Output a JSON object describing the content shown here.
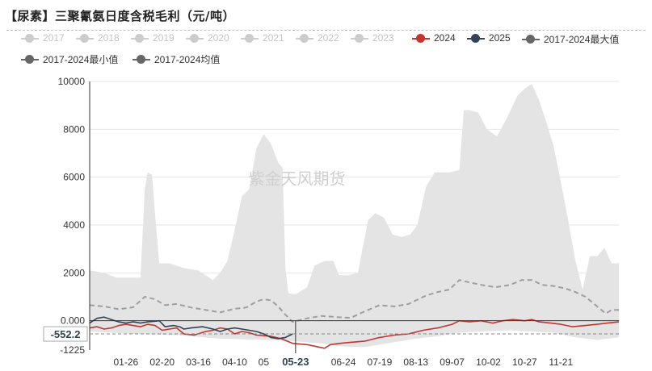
{
  "title": "【尿素】三聚氰氨日度含税毛利（元/吨）",
  "legend": [
    {
      "label": "2017",
      "color": "#cccccc",
      "muted": true
    },
    {
      "label": "2018",
      "color": "#cccccc",
      "muted": true
    },
    {
      "label": "2019",
      "color": "#cccccc",
      "muted": true
    },
    {
      "label": "2020",
      "color": "#cccccc",
      "muted": true
    },
    {
      "label": "2021",
      "color": "#cccccc",
      "muted": true
    },
    {
      "label": "2022",
      "color": "#cccccc",
      "muted": true
    },
    {
      "label": "2023",
      "color": "#cccccc",
      "muted": true
    },
    {
      "label": "2024",
      "color": "#c23531",
      "muted": false
    },
    {
      "label": "2025",
      "color": "#2f4554",
      "muted": false
    },
    {
      "label": "2017-2024最大值",
      "color": "#666666",
      "muted": false
    },
    {
      "label": "2017-2024最小值",
      "color": "#666666",
      "muted": false
    },
    {
      "label": "2017-2024均值",
      "color": "#666666",
      "muted": false
    }
  ],
  "watermark": "紫金天风期货",
  "chart_data": {
    "type": "area",
    "x_axis": {
      "tick_labels": [
        "01-26",
        "02-20",
        "03-16",
        "04-10",
        "05",
        "05-23",
        "06-24",
        "07-19",
        "08-13",
        "09-07",
        "10-02",
        "10-27",
        "11-21"
      ],
      "tick_days": [
        25,
        50,
        75,
        100,
        120,
        142,
        175,
        200,
        225,
        250,
        275,
        300,
        325
      ],
      "highlight_label": "05-23",
      "range_days": [
        0,
        365
      ]
    },
    "y_axis": {
      "ticks": [
        10000,
        8000,
        6000,
        4000,
        2000,
        0
      ],
      "tick_labels": [
        "10000",
        "8000",
        "6000",
        "4000",
        "2000",
        "0.000"
      ],
      "min_label": "-1225",
      "ylim": [
        -1225,
        10000
      ],
      "grid": true
    },
    "crosshair": {
      "value": -552.2,
      "label": "-552.2"
    },
    "series": [
      {
        "name": "2017-2024最大值",
        "role": "band_max",
        "color": "#e4e4e4",
        "points": [
          [
            0,
            2100
          ],
          [
            10,
            2000
          ],
          [
            18,
            1800
          ],
          [
            35,
            1800
          ],
          [
            36,
            3000
          ],
          [
            38,
            5500
          ],
          [
            40,
            6200
          ],
          [
            43,
            6100
          ],
          [
            45,
            4500
          ],
          [
            48,
            2400
          ],
          [
            55,
            2400
          ],
          [
            60,
            2300
          ],
          [
            65,
            2200
          ],
          [
            75,
            2100
          ],
          [
            85,
            1700
          ],
          [
            90,
            2000
          ],
          [
            95,
            2500
          ],
          [
            100,
            3800
          ],
          [
            105,
            5200
          ],
          [
            110,
            5500
          ],
          [
            115,
            7200
          ],
          [
            120,
            7800
          ],
          [
            125,
            7400
          ],
          [
            130,
            6600
          ],
          [
            133,
            6400
          ],
          [
            135,
            2200
          ],
          [
            137,
            1150
          ],
          [
            142,
            1100
          ],
          [
            150,
            1400
          ],
          [
            155,
            2300
          ],
          [
            162,
            2500
          ],
          [
            168,
            2500
          ],
          [
            172,
            1900
          ],
          [
            178,
            1900
          ],
          [
            185,
            2000
          ],
          [
            192,
            4200
          ],
          [
            197,
            4500
          ],
          [
            203,
            4300
          ],
          [
            209,
            3600
          ],
          [
            215,
            3500
          ],
          [
            221,
            3600
          ],
          [
            226,
            4000
          ],
          [
            232,
            5600
          ],
          [
            238,
            6200
          ],
          [
            248,
            6200
          ],
          [
            255,
            6300
          ],
          [
            258,
            8800
          ],
          [
            262,
            8800
          ],
          [
            268,
            8700
          ],
          [
            274,
            8000
          ],
          [
            281,
            7700
          ],
          [
            288,
            8500
          ],
          [
            295,
            9400
          ],
          [
            300,
            9700
          ],
          [
            305,
            9900
          ],
          [
            310,
            9200
          ],
          [
            315,
            8300
          ],
          [
            320,
            7300
          ],
          [
            325,
            5800
          ],
          [
            330,
            4200
          ],
          [
            335,
            2500
          ],
          [
            340,
            1300
          ],
          [
            345,
            2700
          ],
          [
            350,
            2700
          ],
          [
            355,
            3050
          ],
          [
            360,
            2400
          ],
          [
            365,
            2400
          ]
        ]
      },
      {
        "name": "2017-2024最小值",
        "role": "band_min",
        "color": "#e4e4e4",
        "points": [
          [
            0,
            -450
          ],
          [
            30,
            -550
          ],
          [
            60,
            -600
          ],
          [
            90,
            -750
          ],
          [
            120,
            -800
          ],
          [
            140,
            -850
          ],
          [
            150,
            -900
          ],
          [
            160,
            -950
          ],
          [
            170,
            -1050
          ],
          [
            180,
            -1100
          ],
          [
            190,
            -1100
          ],
          [
            200,
            -1000
          ],
          [
            210,
            -900
          ],
          [
            225,
            -750
          ],
          [
            240,
            -650
          ],
          [
            255,
            -500
          ],
          [
            270,
            -450
          ],
          [
            290,
            -400
          ],
          [
            305,
            -450
          ],
          [
            320,
            -500
          ],
          [
            335,
            -700
          ],
          [
            350,
            -800
          ],
          [
            365,
            -700
          ]
        ]
      },
      {
        "name": "2017-2024均值",
        "role": "mean",
        "color": "#9e9e9e",
        "dash": true,
        "points": [
          [
            0,
            650
          ],
          [
            10,
            600
          ],
          [
            20,
            480
          ],
          [
            30,
            560
          ],
          [
            38,
            1000
          ],
          [
            45,
            900
          ],
          [
            52,
            650
          ],
          [
            60,
            700
          ],
          [
            70,
            550
          ],
          [
            80,
            450
          ],
          [
            90,
            350
          ],
          [
            100,
            500
          ],
          [
            108,
            550
          ],
          [
            115,
            800
          ],
          [
            120,
            900
          ],
          [
            125,
            850
          ],
          [
            130,
            600
          ],
          [
            135,
            250
          ],
          [
            140,
            -50
          ],
          [
            150,
            100
          ],
          [
            160,
            200
          ],
          [
            170,
            150
          ],
          [
            180,
            120
          ],
          [
            190,
            400
          ],
          [
            200,
            650
          ],
          [
            210,
            600
          ],
          [
            220,
            700
          ],
          [
            225,
            850
          ],
          [
            232,
            1050
          ],
          [
            240,
            1200
          ],
          [
            248,
            1300
          ],
          [
            255,
            1700
          ],
          [
            262,
            1600
          ],
          [
            270,
            1500
          ],
          [
            280,
            1400
          ],
          [
            290,
            1500
          ],
          [
            298,
            1700
          ],
          [
            305,
            1700
          ],
          [
            312,
            1500
          ],
          [
            320,
            1450
          ],
          [
            328,
            1350
          ],
          [
            335,
            1200
          ],
          [
            342,
            1000
          ],
          [
            350,
            600
          ],
          [
            356,
            300
          ],
          [
            360,
            450
          ],
          [
            365,
            450
          ]
        ]
      },
      {
        "name": "2024",
        "role": "line",
        "color": "#c23531",
        "points": [
          [
            0,
            -300
          ],
          [
            5,
            -250
          ],
          [
            10,
            -350
          ],
          [
            15,
            -300
          ],
          [
            20,
            -200
          ],
          [
            25,
            -150
          ],
          [
            30,
            -200
          ],
          [
            35,
            -250
          ],
          [
            40,
            -150
          ],
          [
            45,
            -200
          ],
          [
            50,
            -400
          ],
          [
            55,
            -350
          ],
          [
            60,
            -300
          ],
          [
            65,
            -550
          ],
          [
            72,
            -600
          ],
          [
            80,
            -450
          ],
          [
            85,
            -400
          ],
          [
            90,
            -300
          ],
          [
            95,
            -350
          ],
          [
            100,
            -550
          ],
          [
            105,
            -450
          ],
          [
            110,
            -500
          ],
          [
            115,
            -600
          ],
          [
            125,
            -650
          ],
          [
            132,
            -750
          ],
          [
            140,
            -950
          ],
          [
            150,
            -1000
          ],
          [
            158,
            -1100
          ],
          [
            162,
            -1150
          ],
          [
            166,
            -1000
          ],
          [
            172,
            -950
          ],
          [
            180,
            -900
          ],
          [
            190,
            -850
          ],
          [
            200,
            -700
          ],
          [
            210,
            -600
          ],
          [
            220,
            -550
          ],
          [
            230,
            -400
          ],
          [
            240,
            -300
          ],
          [
            250,
            -150
          ],
          [
            255,
            0
          ],
          [
            262,
            -50
          ],
          [
            270,
            0
          ],
          [
            278,
            -100
          ],
          [
            285,
            0
          ],
          [
            292,
            50
          ],
          [
            300,
            0
          ],
          [
            305,
            50
          ],
          [
            310,
            -50
          ],
          [
            318,
            -100
          ],
          [
            325,
            -150
          ],
          [
            333,
            -250
          ],
          [
            342,
            -200
          ],
          [
            350,
            -150
          ],
          [
            357,
            -100
          ],
          [
            365,
            -50
          ]
        ]
      },
      {
        "name": "2025",
        "role": "line",
        "color": "#2f4554",
        "points": [
          [
            0,
            -100
          ],
          [
            5,
            100
          ],
          [
            10,
            150
          ],
          [
            15,
            50
          ],
          [
            20,
            -50
          ],
          [
            25,
            -100
          ],
          [
            30,
            -50
          ],
          [
            35,
            -100
          ],
          [
            40,
            -50
          ],
          [
            45,
            -20
          ],
          [
            48,
            0
          ],
          [
            52,
            -250
          ],
          [
            58,
            -200
          ],
          [
            62,
            -250
          ],
          [
            65,
            -350
          ],
          [
            70,
            -300
          ],
          [
            78,
            -250
          ],
          [
            85,
            -350
          ],
          [
            90,
            -450
          ],
          [
            95,
            -350
          ],
          [
            100,
            -300
          ],
          [
            105,
            -350
          ],
          [
            110,
            -400
          ],
          [
            115,
            -450
          ],
          [
            120,
            -550
          ],
          [
            125,
            -700
          ],
          [
            130,
            -750
          ],
          [
            135,
            -700
          ],
          [
            140,
            -552.2
          ]
        ]
      }
    ]
  }
}
